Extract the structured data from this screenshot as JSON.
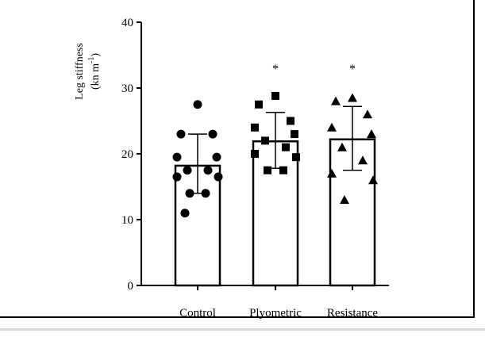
{
  "chart_data": {
    "type": "bar",
    "ylabel_line1": "Leg stiffness",
    "ylabel_line2": "(kn m",
    "ylabel_sup": "-1",
    "ylabel_close": ")",
    "ylim": [
      0,
      40
    ],
    "yticks": [
      "0",
      "10",
      "20",
      "30",
      "40"
    ],
    "categories": [
      "Control",
      "Plyometric",
      "Resistance"
    ],
    "values": [
      18.2,
      21.9,
      22.2
    ],
    "error": [
      [
        14.0,
        23.0
      ],
      [
        17.8,
        26.3
      ],
      [
        17.5,
        27.2
      ]
    ],
    "significance": [
      "",
      "*",
      "*"
    ],
    "markers": [
      "circle",
      "square",
      "triangle"
    ],
    "points": [
      [
        27.5,
        23.0,
        23.0,
        19.5,
        19.5,
        17.5,
        17.5,
        16.5,
        16.5,
        14.0,
        14.0,
        11.0
      ],
      [
        28.8,
        27.5,
        25.0,
        24.0,
        23.0,
        22.0,
        21.0,
        20.0,
        19.5,
        17.5,
        17.5
      ],
      [
        28.5,
        28.0,
        26.0,
        24.0,
        23.0,
        21.0,
        19.0,
        17.0,
        16.0,
        13.0
      ]
    ],
    "grid": false,
    "legend": "none"
  }
}
